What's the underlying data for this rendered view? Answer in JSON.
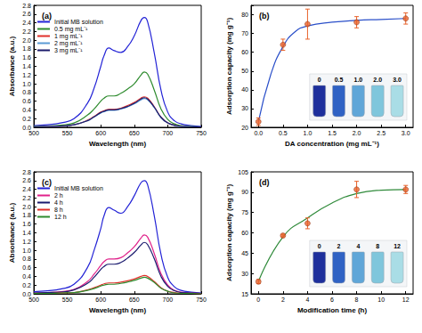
{
  "chart_data": [
    {
      "type": "line",
      "title": "(a)",
      "x_label": "Wavelength (nm)",
      "y_label": "Absorbance (a.u.)",
      "x": [
        500,
        520,
        540,
        560,
        580,
        590,
        600,
        605,
        612,
        620,
        630,
        640,
        650,
        660,
        665,
        670,
        680,
        690,
        700,
        710,
        720,
        735,
        750
      ],
      "series": [
        {
          "name": "Initial MB solution",
          "color": "#2323d6",
          "values": [
            0.04,
            0.06,
            0.1,
            0.2,
            0.55,
            0.9,
            1.4,
            1.65,
            1.82,
            1.76,
            1.72,
            1.85,
            2.1,
            2.45,
            2.52,
            2.42,
            1.7,
            0.85,
            0.35,
            0.15,
            0.08,
            0.04,
            0.02
          ]
        },
        {
          "name": "0.5 mg mL⁻¹",
          "color": "#2e8b2e",
          "values": [
            0.02,
            0.03,
            0.05,
            0.1,
            0.28,
            0.42,
            0.6,
            0.67,
            0.72,
            0.72,
            0.78,
            0.88,
            1.0,
            1.2,
            1.27,
            1.22,
            0.85,
            0.42,
            0.18,
            0.08,
            0.04,
            0.02,
            0.01
          ]
        },
        {
          "name": "1 mg mL⁻¹",
          "color": "#e0302a",
          "values": [
            0.01,
            0.02,
            0.03,
            0.06,
            0.16,
            0.25,
            0.35,
            0.38,
            0.41,
            0.41,
            0.44,
            0.5,
            0.57,
            0.67,
            0.7,
            0.67,
            0.47,
            0.23,
            0.1,
            0.05,
            0.02,
            0.01,
            0.01
          ]
        },
        {
          "name": "2 mg mL⁻¹",
          "color": "#5b9bd5",
          "values": [
            0.01,
            0.02,
            0.03,
            0.06,
            0.15,
            0.24,
            0.33,
            0.36,
            0.39,
            0.39,
            0.42,
            0.47,
            0.54,
            0.63,
            0.66,
            0.63,
            0.45,
            0.22,
            0.1,
            0.04,
            0.02,
            0.01,
            0.01
          ]
        },
        {
          "name": "3 mg mL⁻¹",
          "color": "#1b1b6b",
          "values": [
            0.01,
            0.02,
            0.03,
            0.06,
            0.15,
            0.24,
            0.34,
            0.37,
            0.4,
            0.4,
            0.43,
            0.48,
            0.55,
            0.65,
            0.68,
            0.65,
            0.46,
            0.23,
            0.1,
            0.05,
            0.02,
            0.01,
            0.01
          ]
        }
      ],
      "xlim": [
        500,
        750
      ],
      "xticks": [
        500,
        550,
        600,
        650,
        700,
        750
      ],
      "ylim": [
        0,
        2.8
      ],
      "yticks": [
        {
          "value": 0,
          "label": "0.0"
        },
        0.2,
        0.4,
        0.6,
        0.8,
        {
          "value": 1,
          "label": "1.0"
        },
        1.2,
        1.4,
        1.6,
        1.8,
        {
          "value": 2,
          "label": "2.0"
        },
        2.2,
        2.4,
        2.6,
        2.8
      ],
      "legend": "upper left",
      "grid": false
    },
    {
      "type": "scatter",
      "title": "(b)",
      "x_label": "DA concentration (mg mL⁻¹)",
      "y_label": "Adsorption capacity (mg g⁻¹)",
      "annotations": [
        "0",
        "0.5",
        "1.0",
        "2.0",
        "3.0"
      ],
      "series": [
        {
          "type": "line",
          "color": "#2a4fc9",
          "line_style": "solid",
          "x": [
            0,
            0.25,
            0.5,
            0.75,
            1,
            1.5,
            2,
            2.5,
            3
          ],
          "values": [
            23,
            48,
            63,
            71,
            74,
            76,
            77,
            77.5,
            78
          ]
        },
        {
          "type": "scatter",
          "color": "#e8622a",
          "marker": "circle",
          "x": [
            0,
            0.5,
            1,
            2,
            3
          ],
          "values": [
            23,
            64,
            75,
            76,
            78
          ],
          "errors": [
            2,
            3,
            8,
            3,
            3
          ]
        }
      ],
      "xlim": [
        -0.15,
        3.15
      ],
      "xticks": [
        {
          "value": 0,
          "label": "0.0"
        },
        0.5,
        {
          "value": 1,
          "label": "1.0"
        },
        1.5,
        {
          "value": 2,
          "label": "2.0"
        },
        2.5,
        {
          "value": 3,
          "label": "3.0"
        }
      ],
      "ylim": [
        20,
        85
      ],
      "yticks": [
        20,
        30,
        40,
        50,
        60,
        70,
        80
      ],
      "grid": false
    },
    {
      "type": "line",
      "title": "(c)",
      "x_label": "Wavelength (nm)",
      "y_label": "Absorbance (a.u.)",
      "x": [
        500,
        520,
        540,
        560,
        580,
        590,
        600,
        605,
        612,
        620,
        630,
        640,
        650,
        660,
        665,
        670,
        680,
        690,
        700,
        710,
        720,
        735,
        750
      ],
      "series": [
        {
          "name": "Initial MB solution",
          "color": "#2323d6",
          "values": [
            0.05,
            0.07,
            0.11,
            0.22,
            0.6,
            1.0,
            1.5,
            1.8,
            1.98,
            1.92,
            1.85,
            2.0,
            2.25,
            2.55,
            2.6,
            2.5,
            1.78,
            0.9,
            0.38,
            0.16,
            0.08,
            0.04,
            0.02
          ]
        },
        {
          "name": "2 h",
          "color": "#e0218a",
          "values": [
            0.02,
            0.03,
            0.05,
            0.1,
            0.28,
            0.45,
            0.65,
            0.74,
            0.8,
            0.8,
            0.83,
            0.94,
            1.08,
            1.28,
            1.35,
            1.3,
            0.92,
            0.46,
            0.2,
            0.08,
            0.04,
            0.02,
            0.01
          ]
        },
        {
          "name": "4 h",
          "color": "#1a1a6e",
          "values": [
            0.02,
            0.03,
            0.04,
            0.09,
            0.24,
            0.38,
            0.56,
            0.63,
            0.68,
            0.68,
            0.72,
            0.82,
            0.95,
            1.12,
            1.18,
            1.13,
            0.8,
            0.4,
            0.17,
            0.07,
            0.03,
            0.02,
            0.01
          ]
        },
        {
          "name": "8 h",
          "color": "#e0302a",
          "values": [
            0.01,
            0.01,
            0.02,
            0.03,
            0.09,
            0.14,
            0.2,
            0.23,
            0.25,
            0.25,
            0.27,
            0.3,
            0.34,
            0.4,
            0.42,
            0.4,
            0.28,
            0.14,
            0.06,
            0.03,
            0.01,
            0.01,
            0
          ]
        },
        {
          "name": "12 h",
          "color": "#2e8b2e",
          "values": [
            0.01,
            0.01,
            0.02,
            0.03,
            0.08,
            0.12,
            0.18,
            0.2,
            0.22,
            0.22,
            0.24,
            0.27,
            0.31,
            0.36,
            0.38,
            0.36,
            0.26,
            0.13,
            0.06,
            0.02,
            0.01,
            0.01,
            0
          ]
        }
      ],
      "xlim": [
        500,
        750
      ],
      "xticks": [
        500,
        550,
        600,
        650,
        700,
        750
      ],
      "ylim": [
        0,
        2.8
      ],
      "yticks": [
        {
          "value": 0,
          "label": "0.0"
        },
        0.2,
        0.4,
        0.6,
        0.8,
        {
          "value": 1,
          "label": "1.0"
        },
        1.2,
        1.4,
        1.6,
        1.8,
        {
          "value": 2,
          "label": "2.0"
        },
        2.2,
        2.4,
        2.6,
        2.8
      ],
      "legend": "upper left",
      "grid": false
    },
    {
      "type": "scatter",
      "title": "(d)",
      "x_label": "Modification time (h)",
      "y_label": "Adsorption capacity (mg g⁻¹)",
      "annotations": [
        "0",
        "2",
        "4",
        "8",
        "12"
      ],
      "series": [
        {
          "type": "line",
          "color": "#2f8a3a",
          "line_style": "solid",
          "x": [
            0,
            2,
            4,
            6,
            8,
            10,
            12
          ],
          "values": [
            24,
            57,
            71,
            82,
            89,
            91.5,
            92
          ]
        },
        {
          "type": "scatter",
          "color": "#e8622a",
          "marker": "circle",
          "x": [
            0,
            2,
            4,
            8,
            12
          ],
          "values": [
            24,
            58,
            67,
            92,
            92
          ],
          "errors": [
            1.5,
            1,
            4,
            6,
            3
          ]
        }
      ],
      "xlim": [
        -0.6,
        12.6
      ],
      "xticks": [
        0,
        2,
        4,
        6,
        8,
        10,
        12
      ],
      "ylim": [
        15,
        105
      ],
      "yticks": [
        15,
        30,
        45,
        60,
        75,
        90,
        105
      ],
      "grid": false
    }
  ]
}
